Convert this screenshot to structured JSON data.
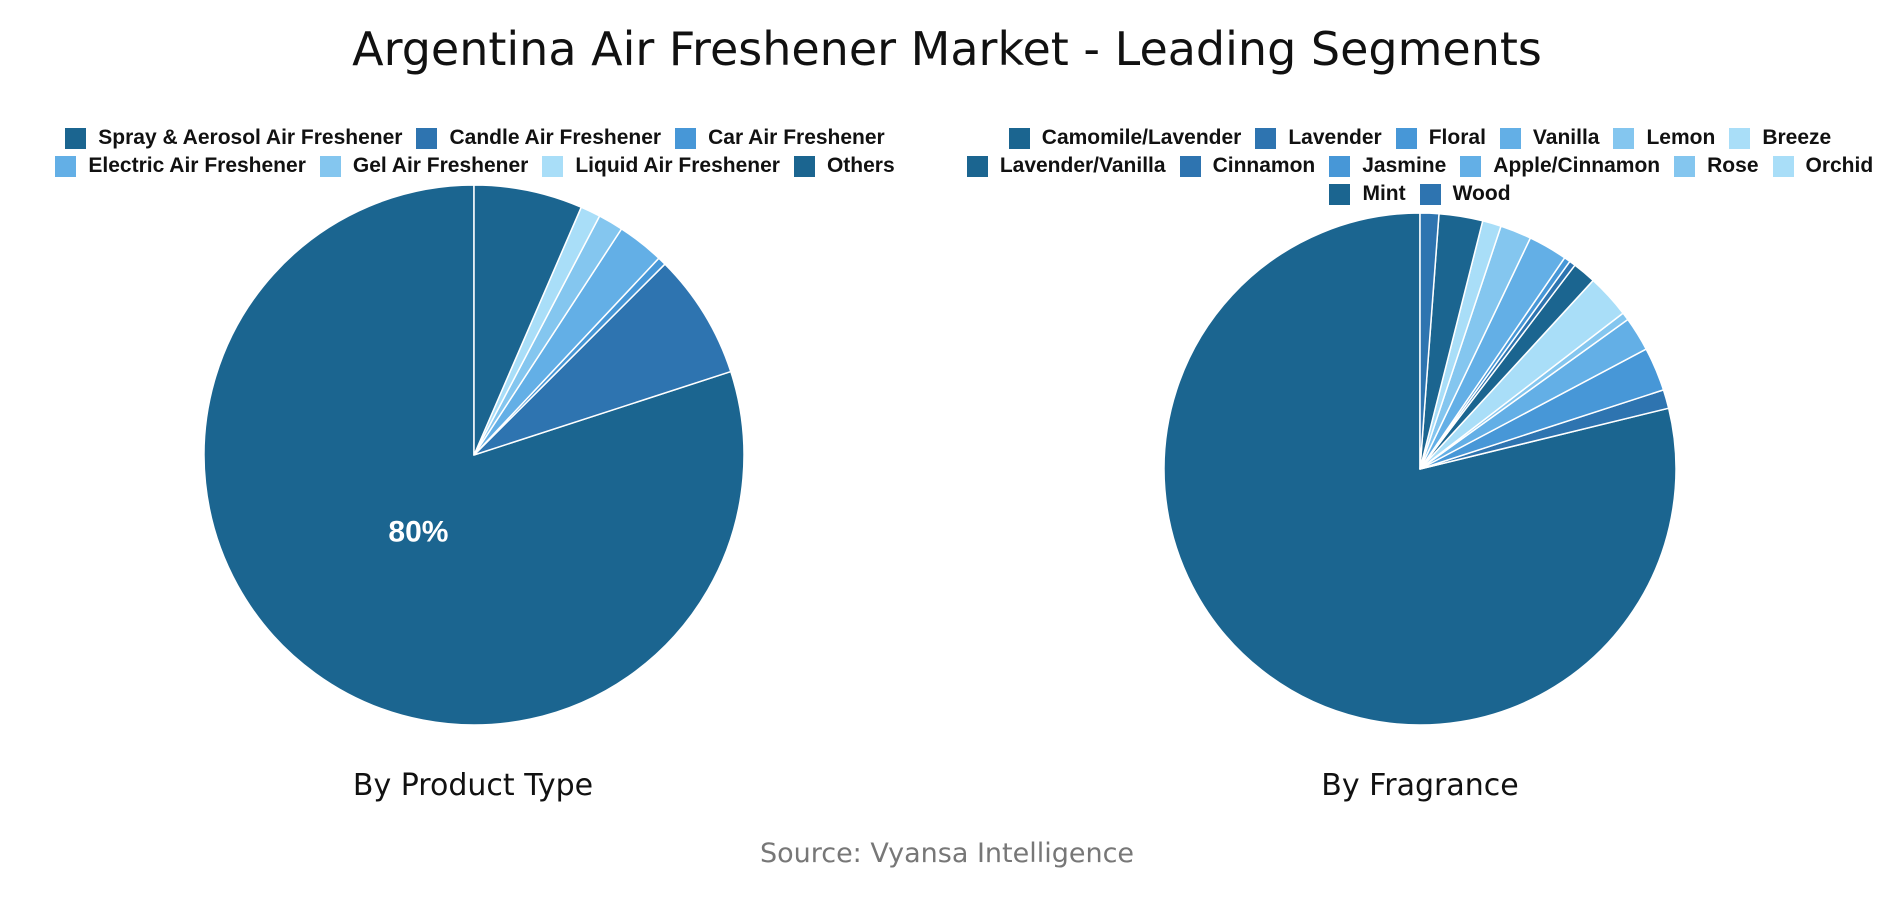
{
  "title": "Argentina Air Freshener Market - Leading Segments",
  "source": "Source: Vyansa Intelligence",
  "chart_data": [
    {
      "type": "pie",
      "subtitle": "By Product Type",
      "start_angle": 0,
      "direction": "counterclockwise",
      "slices": [
        {
          "label": "Spray & Aerosol Air Freshener",
          "value": 80,
          "color": "#1b6590",
          "display_label": "80%"
        },
        {
          "label": "Candle Air Freshener",
          "value": 7.5,
          "color": "#2e74b0",
          "display_label": ""
        },
        {
          "label": "Car Air Freshener",
          "value": 0.5,
          "color": "#4797d7",
          "display_label": ""
        },
        {
          "label": "Electric Air Freshener",
          "value": 2.8,
          "color": "#63afe6",
          "display_label": ""
        },
        {
          "label": "Gel Air Freshener",
          "value": 1.5,
          "color": "#84c6ef",
          "display_label": ""
        },
        {
          "label": "Liquid Air Freshener",
          "value": 1.2,
          "color": "#a9def8",
          "display_label": ""
        },
        {
          "label": "Others",
          "value": 6.5,
          "color": "#1b6590",
          "display_label": ""
        }
      ]
    },
    {
      "type": "pie",
      "subtitle": "By Fragrance",
      "start_angle": 0,
      "direction": "counterclockwise",
      "slices": [
        {
          "label": "Camomile/Lavender",
          "value": 80,
          "color": "#1b6590",
          "display_label": ""
        },
        {
          "label": "Lavender",
          "value": 1.2,
          "color": "#2e74b0",
          "display_label": ""
        },
        {
          "label": "Floral",
          "value": 2.8,
          "color": "#4797d7",
          "display_label": ""
        },
        {
          "label": "Vanilla",
          "value": 2.2,
          "color": "#63afe6",
          "display_label": ""
        },
        {
          "label": "Lemon",
          "value": 0.5,
          "color": "#84c6ef",
          "display_label": ""
        },
        {
          "label": "Breeze",
          "value": 2.8,
          "color": "#a9def8",
          "display_label": ""
        },
        {
          "label": "Lavender/Vanilla",
          "value": 1.5,
          "color": "#1b6590",
          "display_label": ""
        },
        {
          "label": "Cinnamon",
          "value": 0.4,
          "color": "#2e74b0",
          "display_label": ""
        },
        {
          "label": "Jasmine",
          "value": 0.4,
          "color": "#4797d7",
          "display_label": ""
        },
        {
          "label": "Apple/Cinnamon",
          "value": 2.5,
          "color": "#63afe6",
          "display_label": ""
        },
        {
          "label": "Rose",
          "value": 2.0,
          "color": "#84c6ef",
          "display_label": ""
        },
        {
          "label": "Orchid",
          "value": 1.2,
          "color": "#a9def8",
          "display_label": ""
        },
        {
          "label": "Mint",
          "value": 2.8,
          "color": "#1b6590",
          "display_label": ""
        },
        {
          "label": "Wood",
          "value": 1.2,
          "color": "#2e74b0",
          "display_label": ""
        }
      ]
    }
  ]
}
